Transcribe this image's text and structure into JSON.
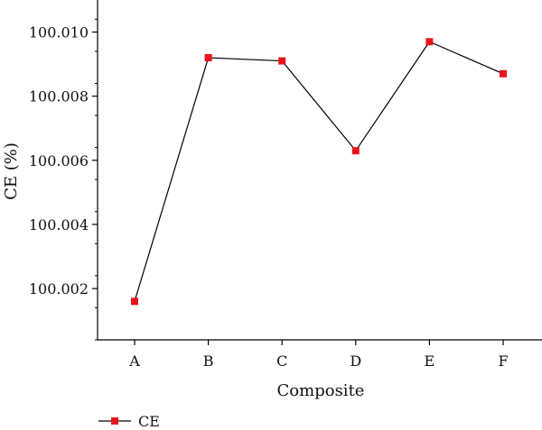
{
  "chart_data": {
    "type": "line",
    "categories": [
      "A",
      "B",
      "C",
      "D",
      "E",
      "F"
    ],
    "series": [
      {
        "name": "CE",
        "values": [
          100.0016,
          100.0092,
          100.0091,
          100.0063,
          100.0097,
          100.0087
        ],
        "color": "#e8141c",
        "line_color": "#000000"
      }
    ],
    "title": "",
    "xlabel": "Composite",
    "ylabel": "CE (%)",
    "ylim": [
      100.0004,
      100.011
    ],
    "yticks": [
      100.002,
      100.004,
      100.006,
      100.008,
      100.01
    ],
    "ytick_labels": [
      "100.002",
      "100.004",
      "100.006",
      "100.008",
      "100.010"
    ],
    "grid": false,
    "legend": {
      "position": "bottom-left",
      "entries": [
        "CE"
      ]
    }
  }
}
